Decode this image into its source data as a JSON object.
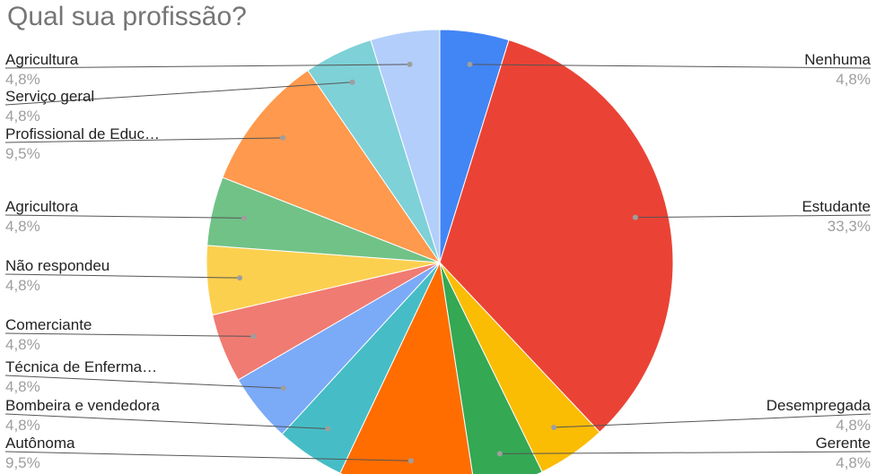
{
  "chart_data": {
    "type": "pie",
    "title": "Qual sua profissão?",
    "start_angle_deg": 0,
    "direction": "clockwise",
    "slices": [
      {
        "label": "Nenhuma",
        "value": 4.8,
        "value_label": "4,8%",
        "color": "#4285f4"
      },
      {
        "label": "Estudante",
        "value": 33.3,
        "value_label": "33,3%",
        "color": "#ea4335"
      },
      {
        "label": "Desempregada",
        "value": 4.8,
        "value_label": "4,8%",
        "color": "#fbbc04"
      },
      {
        "label": "Gerente",
        "value": 4.8,
        "value_label": "4,8%",
        "color": "#34a853"
      },
      {
        "label": "Autônoma",
        "value": 9.5,
        "value_label": "9,5%",
        "color": "#ff6d01"
      },
      {
        "label": "Bombeira e vendedora",
        "value": 4.8,
        "value_label": "4,8%",
        "color": "#46bdc6"
      },
      {
        "label": "Técnica de Enferma…",
        "value": 4.8,
        "value_label": "4,8%",
        "color": "#7baaf7"
      },
      {
        "label": "Comerciante",
        "value": 4.8,
        "value_label": "4,8%",
        "color": "#f07b72"
      },
      {
        "label": "Não respondeu",
        "value": 4.8,
        "value_label": "4,8%",
        "color": "#fcd04f"
      },
      {
        "label": "Agricultora",
        "value": 4.8,
        "value_label": "4,8%",
        "color": "#71c287"
      },
      {
        "label": "Profissional de Educ…",
        "value": 9.5,
        "value_label": "9,5%",
        "color": "#ff994d"
      },
      {
        "label": "Serviço geral",
        "value": 4.8,
        "value_label": "4,8%",
        "color": "#7ed1d7"
      },
      {
        "label": "Agricultura",
        "value": 4.8,
        "value_label": "4,8%",
        "color": "#b3cefb"
      }
    ]
  }
}
